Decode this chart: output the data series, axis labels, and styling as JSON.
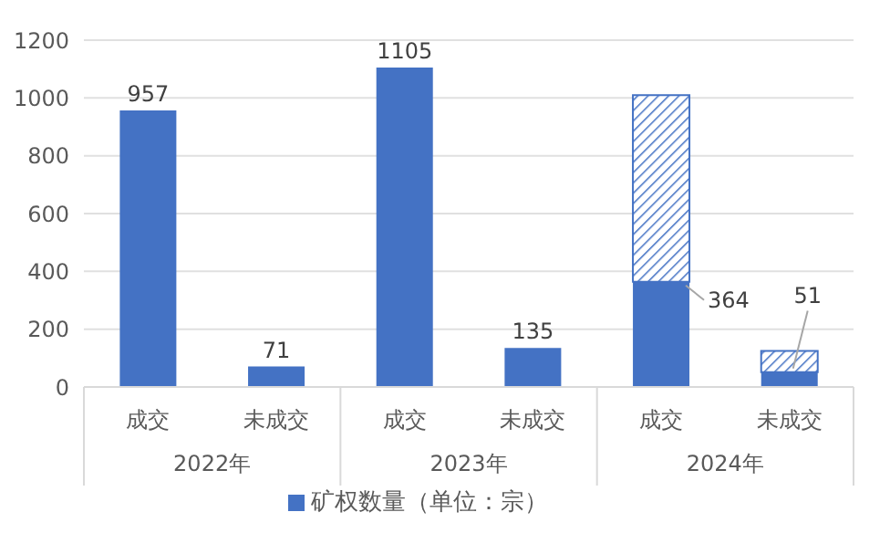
{
  "chart_data": {
    "type": "bar",
    "stacked": true,
    "categories": [
      "成交",
      "未成交",
      "成交",
      "未成交",
      "成交",
      "未成交"
    ],
    "annotations": [
      "2022年",
      "2023年",
      "2024年"
    ],
    "series": [
      {
        "name": "矿权数量（单位：宗）",
        "color": "#4472c4",
        "values": [
          957,
          71,
          1105,
          135,
          364,
          51
        ],
        "value_labels": [
          "957",
          "71",
          "1105",
          "135",
          "364",
          "51"
        ]
      },
      {
        "color": "#4472c4",
        "values": [
          null,
          null,
          null,
          null,
          646,
          74
        ]
      }
    ],
    "ylim": [
      0,
      1200
    ],
    "yticks": [
      0,
      200,
      400,
      600,
      800,
      1000,
      1200
    ],
    "grid": "y",
    "legend": "bottom"
  }
}
